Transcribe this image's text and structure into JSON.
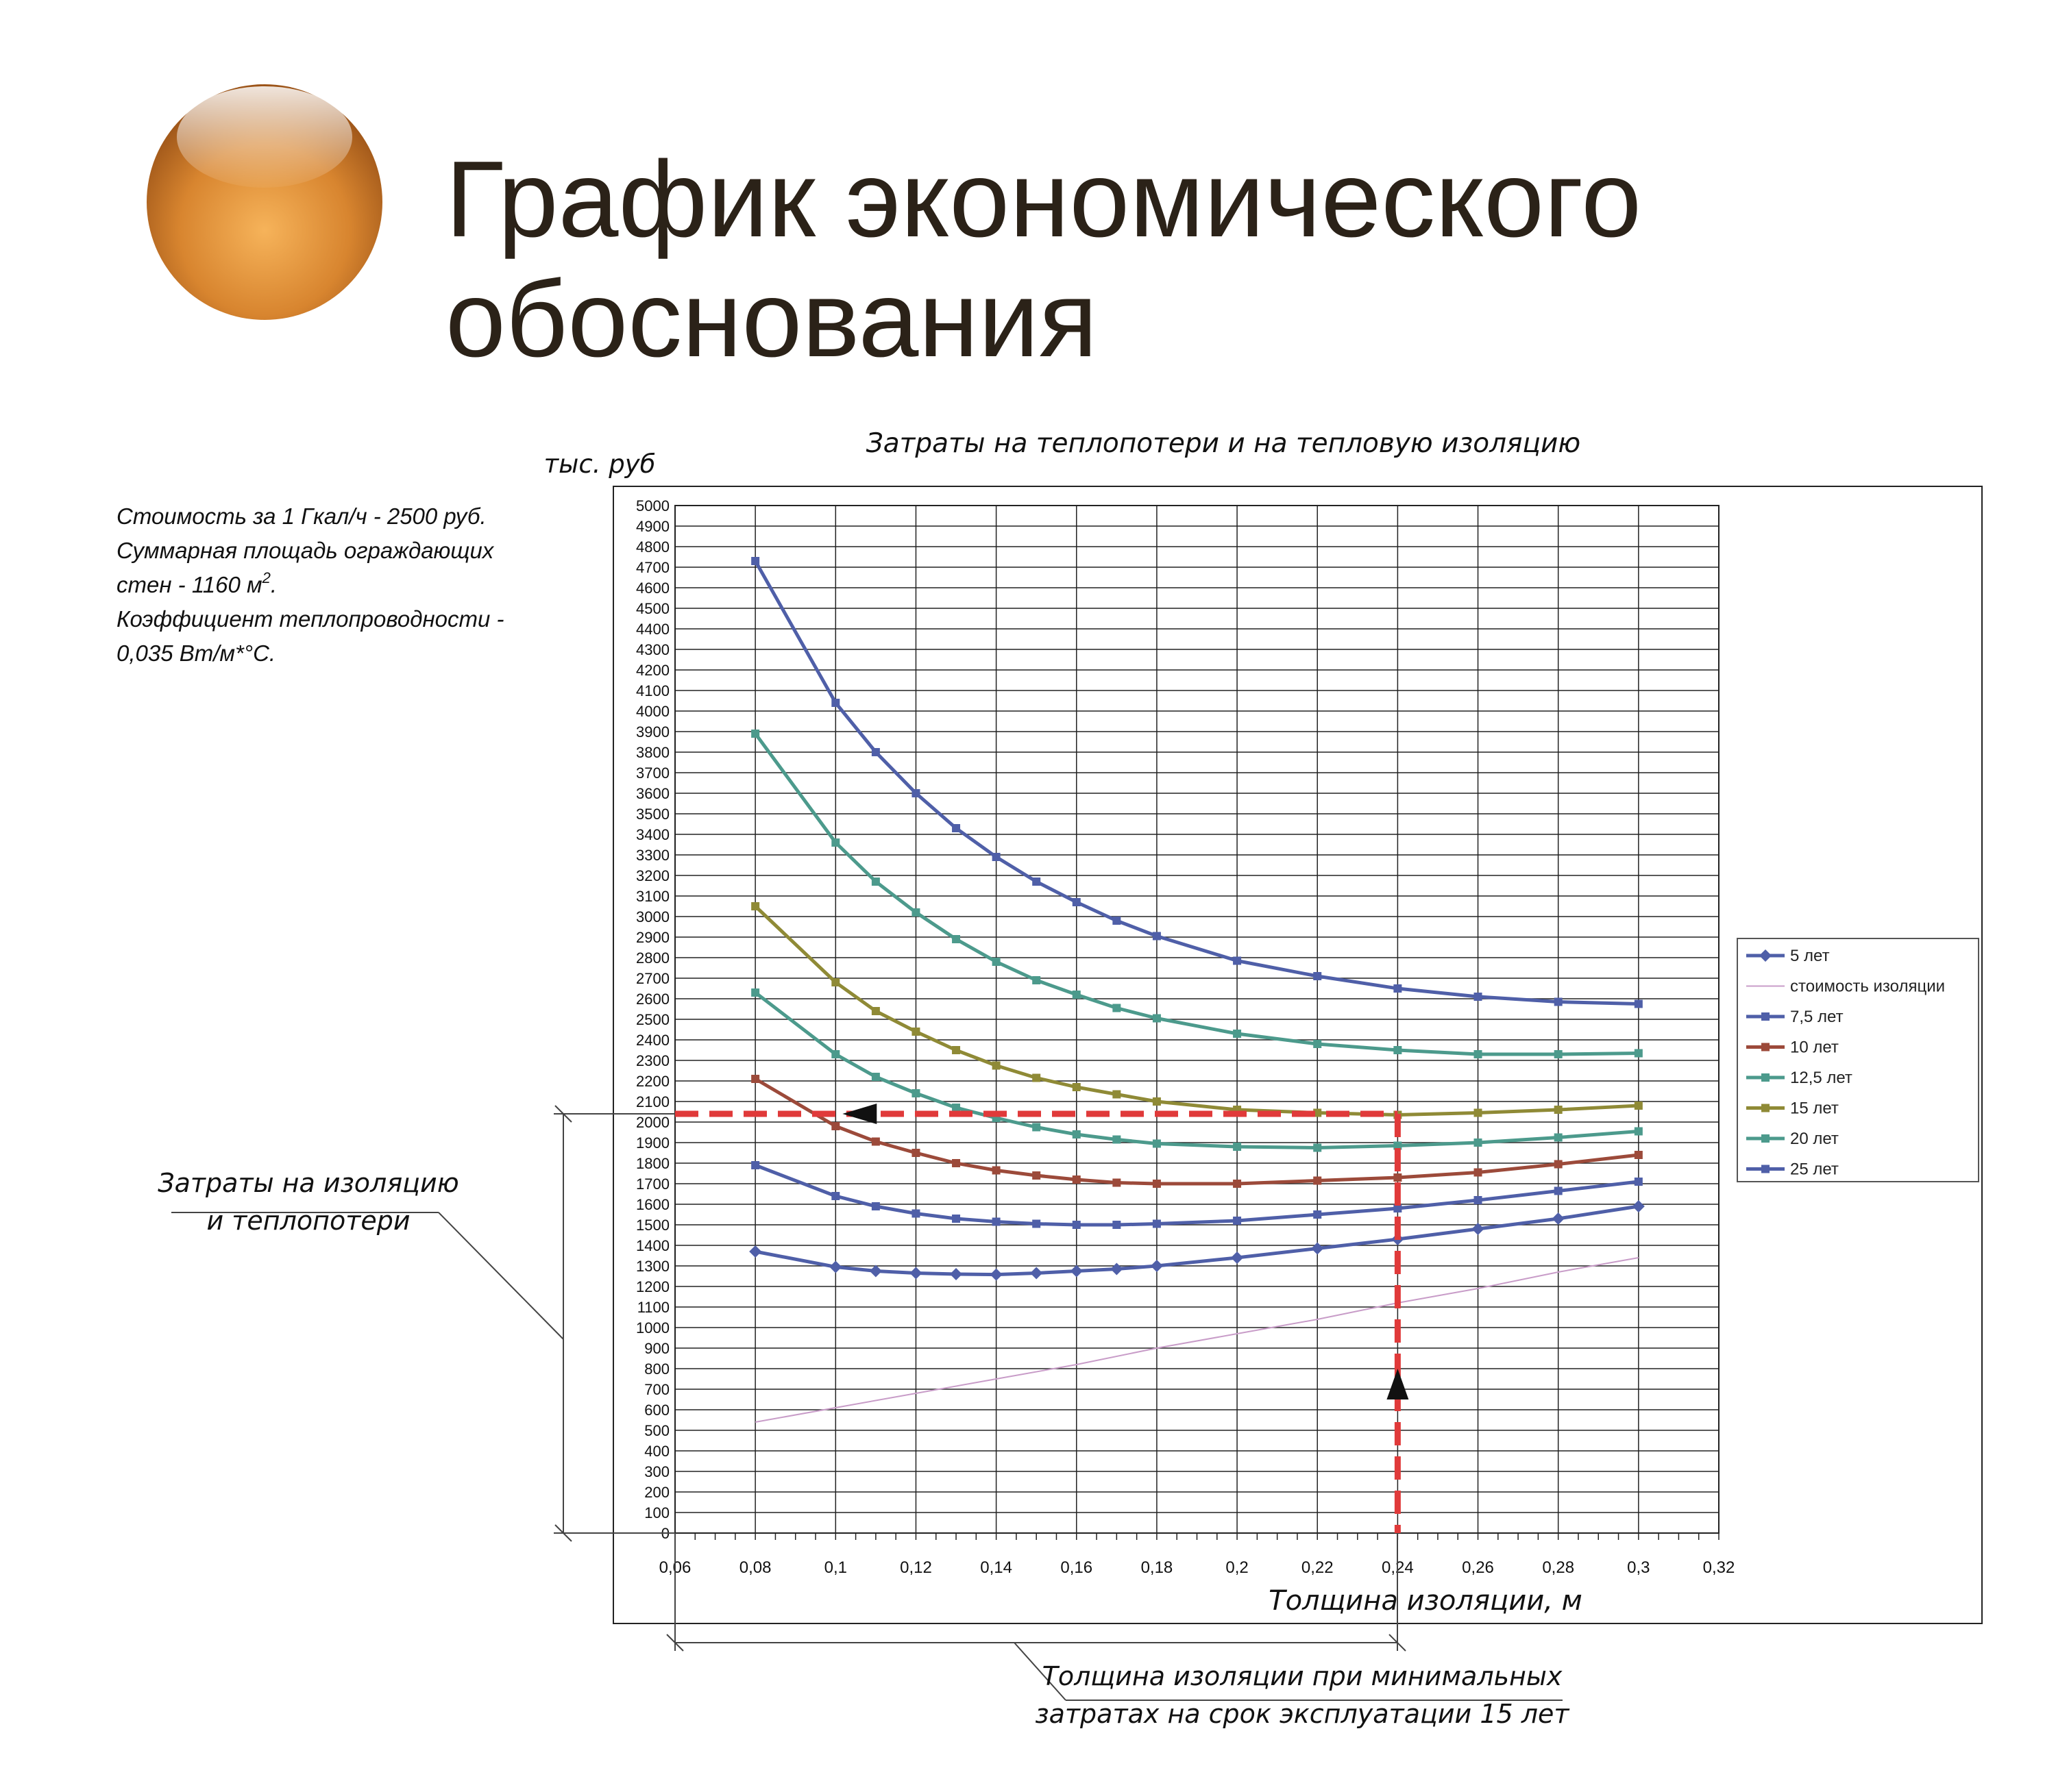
{
  "slide": {
    "title_line1": "График экономического",
    "title_line2": "обоснования"
  },
  "notes": {
    "line1": "Стоимость за 1 Гкал/ч - 2500 руб.",
    "line2": "Суммарная площадь ограждающих",
    "line3_prefix": "стен - 1160 м",
    "line3_sup": "2",
    "line3_suffix": ".",
    "line4": "Коэффициент теплопроводности -",
    "line5": "0,035 Вт/м*°С."
  },
  "callouts": {
    "left_line1": "Затраты на изоляцию",
    "left_line2": "и теплопотери",
    "bottom_line1": "Толщина изоляции при минимальных",
    "bottom_line2": "затратах на срок эксплуатации 15 лет"
  },
  "colors": {
    "blue": "#4f5fa8",
    "teal": "#4c9a8c",
    "olive": "#8f8a36",
    "brown": "#9c4a3a",
    "pink": "#c89cc8",
    "red_dashed": "#e03a3a",
    "orb": "#d98a36"
  },
  "chart_data": {
    "type": "line",
    "title": "Затраты на теплопотери и на тепловую изоляцию",
    "xlabel": "Толщина изоляции, м",
    "ylabel": "тыс. руб",
    "xlim": [
      0.06,
      0.32
    ],
    "ylim": [
      0,
      5000
    ],
    "x_ticks": [
      "0,06",
      "0,08",
      "0,1",
      "0,12",
      "0,14",
      "0,16",
      "0,18",
      "0,2",
      "0,22",
      "0,24",
      "0,26",
      "0,28",
      "0,3",
      "0,32"
    ],
    "grid": true,
    "legend_position": "right",
    "series": [
      {
        "name": "5 лет",
        "color": "#4f5fa8",
        "marker": "diamond",
        "points": [
          [
            0.08,
            1370
          ],
          [
            0.1,
            1295
          ],
          [
            0.11,
            1275
          ],
          [
            0.12,
            1265
          ],
          [
            0.13,
            1260
          ],
          [
            0.14,
            1258
          ],
          [
            0.15,
            1265
          ],
          [
            0.16,
            1275
          ],
          [
            0.17,
            1285
          ],
          [
            0.18,
            1300
          ],
          [
            0.2,
            1340
          ],
          [
            0.22,
            1385
          ],
          [
            0.24,
            1430
          ],
          [
            0.26,
            1480
          ],
          [
            0.28,
            1530
          ],
          [
            0.3,
            1590
          ]
        ]
      },
      {
        "name": "стоимость изоляции",
        "color": "#c89cc8",
        "marker": "none",
        "points": [
          [
            0.08,
            540
          ],
          [
            0.1,
            610
          ],
          [
            0.12,
            680
          ],
          [
            0.14,
            750
          ],
          [
            0.16,
            820
          ],
          [
            0.18,
            900
          ],
          [
            0.2,
            970
          ],
          [
            0.22,
            1040
          ],
          [
            0.24,
            1120
          ],
          [
            0.26,
            1190
          ],
          [
            0.28,
            1270
          ],
          [
            0.3,
            1340
          ]
        ]
      },
      {
        "name": "7,5 лет",
        "color": "#4f5fa8",
        "marker": "square",
        "points": [
          [
            0.08,
            1790
          ],
          [
            0.1,
            1640
          ],
          [
            0.11,
            1590
          ],
          [
            0.12,
            1555
          ],
          [
            0.13,
            1530
          ],
          [
            0.14,
            1515
          ],
          [
            0.15,
            1505
          ],
          [
            0.16,
            1500
          ],
          [
            0.17,
            1500
          ],
          [
            0.18,
            1505
          ],
          [
            0.2,
            1520
          ],
          [
            0.22,
            1550
          ],
          [
            0.24,
            1580
          ],
          [
            0.26,
            1620
          ],
          [
            0.28,
            1665
          ],
          [
            0.3,
            1710
          ]
        ]
      },
      {
        "name": "10 лет",
        "color": "#9c4a3a",
        "marker": "square",
        "points": [
          [
            0.08,
            2210
          ],
          [
            0.1,
            1980
          ],
          [
            0.11,
            1905
          ],
          [
            0.12,
            1850
          ],
          [
            0.13,
            1800
          ],
          [
            0.14,
            1765
          ],
          [
            0.15,
            1740
          ],
          [
            0.16,
            1720
          ],
          [
            0.17,
            1705
          ],
          [
            0.18,
            1700
          ],
          [
            0.2,
            1700
          ],
          [
            0.22,
            1715
          ],
          [
            0.24,
            1730
          ],
          [
            0.26,
            1755
          ],
          [
            0.28,
            1795
          ],
          [
            0.3,
            1840
          ]
        ]
      },
      {
        "name": "12,5 лет",
        "color": "#4c9a8c",
        "marker": "square",
        "points": [
          [
            0.08,
            2630
          ],
          [
            0.1,
            2330
          ],
          [
            0.11,
            2220
          ],
          [
            0.12,
            2140
          ],
          [
            0.13,
            2070
          ],
          [
            0.14,
            2020
          ],
          [
            0.15,
            1975
          ],
          [
            0.16,
            1940
          ],
          [
            0.17,
            1915
          ],
          [
            0.18,
            1895
          ],
          [
            0.2,
            1880
          ],
          [
            0.22,
            1875
          ],
          [
            0.24,
            1885
          ],
          [
            0.26,
            1900
          ],
          [
            0.28,
            1925
          ],
          [
            0.3,
            1955
          ]
        ]
      },
      {
        "name": "15 лет",
        "color": "#8f8a36",
        "marker": "square",
        "points": [
          [
            0.08,
            3050
          ],
          [
            0.1,
            2680
          ],
          [
            0.11,
            2540
          ],
          [
            0.12,
            2440
          ],
          [
            0.13,
            2350
          ],
          [
            0.14,
            2275
          ],
          [
            0.15,
            2215
          ],
          [
            0.16,
            2170
          ],
          [
            0.17,
            2135
          ],
          [
            0.18,
            2100
          ],
          [
            0.2,
            2060
          ],
          [
            0.22,
            2045
          ],
          [
            0.24,
            2035
          ],
          [
            0.26,
            2045
          ],
          [
            0.28,
            2060
          ],
          [
            0.3,
            2080
          ]
        ]
      },
      {
        "name": "20 лет",
        "color": "#4c9a8c",
        "marker": "square",
        "points": [
          [
            0.08,
            3890
          ],
          [
            0.1,
            3360
          ],
          [
            0.11,
            3170
          ],
          [
            0.12,
            3020
          ],
          [
            0.13,
            2890
          ],
          [
            0.14,
            2780
          ],
          [
            0.15,
            2690
          ],
          [
            0.16,
            2620
          ],
          [
            0.17,
            2555
          ],
          [
            0.18,
            2505
          ],
          [
            0.2,
            2430
          ],
          [
            0.22,
            2380
          ],
          [
            0.24,
            2350
          ],
          [
            0.26,
            2330
          ],
          [
            0.28,
            2330
          ],
          [
            0.3,
            2335
          ]
        ]
      },
      {
        "name": "25 лет",
        "color": "#4f5fa8",
        "marker": "square",
        "points": [
          [
            0.08,
            4730
          ],
          [
            0.1,
            4040
          ],
          [
            0.11,
            3800
          ],
          [
            0.12,
            3600
          ],
          [
            0.13,
            3430
          ],
          [
            0.14,
            3290
          ],
          [
            0.15,
            3170
          ],
          [
            0.16,
            3070
          ],
          [
            0.17,
            2980
          ],
          [
            0.18,
            2905
          ],
          [
            0.2,
            2785
          ],
          [
            0.22,
            2710
          ],
          [
            0.24,
            2650
          ],
          [
            0.26,
            2610
          ],
          [
            0.28,
            2585
          ],
          [
            0.3,
            2575
          ]
        ]
      }
    ],
    "annotations": {
      "optimum_x": 0.24,
      "optimum_y": 2040,
      "arrow_label": ""
    }
  }
}
